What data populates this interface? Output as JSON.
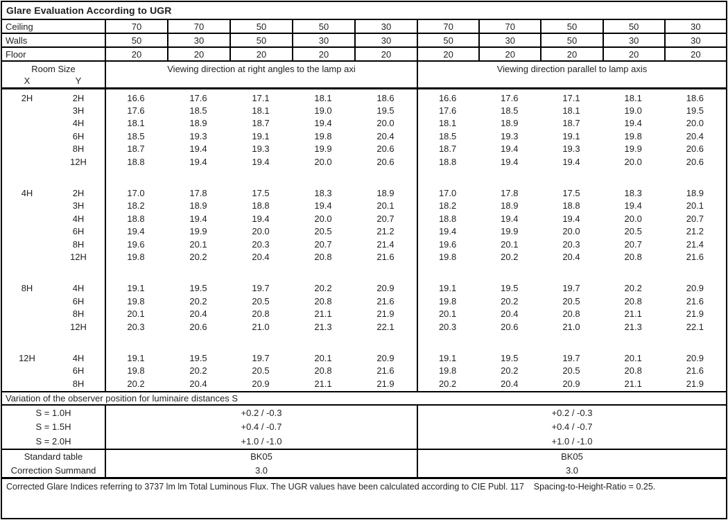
{
  "title": "Glare Evaluation According to UGR",
  "colors": {
    "border": "#000000",
    "text": "#1f1f1f",
    "background": "#ffffff"
  },
  "surface_reflectances": {
    "rows": [
      {
        "label": "Ceiling",
        "values": [
          "70",
          "70",
          "50",
          "50",
          "30",
          "70",
          "70",
          "50",
          "50",
          "30"
        ]
      },
      {
        "label": "Walls",
        "values": [
          "50",
          "30",
          "50",
          "30",
          "30",
          "50",
          "30",
          "50",
          "30",
          "30"
        ]
      },
      {
        "label": "Floor",
        "values": [
          "20",
          "20",
          "20",
          "20",
          "20",
          "20",
          "20",
          "20",
          "20",
          "20"
        ]
      }
    ]
  },
  "header": {
    "room_size": "Room Size",
    "x": "X",
    "y": "Y",
    "left_section": "Viewing direction at right angles to the lamp axi",
    "right_section": "Viewing direction parallel to lamp axis"
  },
  "ugr_table": {
    "blocks": [
      {
        "x": "2H",
        "rows": [
          {
            "y": "2H",
            "right_angle": [
              "16.6",
              "17.6",
              "17.1",
              "18.1",
              "18.6"
            ],
            "parallel": [
              "16.6",
              "17.6",
              "17.1",
              "18.1",
              "18.6"
            ]
          },
          {
            "y": "3H",
            "right_angle": [
              "17.6",
              "18.5",
              "18.1",
              "19.0",
              "19.5"
            ],
            "parallel": [
              "17.6",
              "18.5",
              "18.1",
              "19.0",
              "19.5"
            ]
          },
          {
            "y": "4H",
            "right_angle": [
              "18.1",
              "18.9",
              "18.7",
              "19.4",
              "20.0"
            ],
            "parallel": [
              "18.1",
              "18.9",
              "18.7",
              "19.4",
              "20.0"
            ]
          },
          {
            "y": "6H",
            "right_angle": [
              "18.5",
              "19.3",
              "19.1",
              "19.8",
              "20.4"
            ],
            "parallel": [
              "18.5",
              "19.3",
              "19.1",
              "19.8",
              "20.4"
            ]
          },
          {
            "y": "8H",
            "right_angle": [
              "18.7",
              "19.4",
              "19.3",
              "19.9",
              "20.6"
            ],
            "parallel": [
              "18.7",
              "19.4",
              "19.3",
              "19.9",
              "20.6"
            ]
          },
          {
            "y": "12H",
            "right_angle": [
              "18.8",
              "19.4",
              "19.4",
              "20.0",
              "20.6"
            ],
            "parallel": [
              "18.8",
              "19.4",
              "19.4",
              "20.0",
              "20.6"
            ]
          }
        ]
      },
      {
        "x": "4H",
        "rows": [
          {
            "y": "2H",
            "right_angle": [
              "17.0",
              "17.8",
              "17.5",
              "18.3",
              "18.9"
            ],
            "parallel": [
              "17.0",
              "17.8",
              "17.5",
              "18.3",
              "18.9"
            ]
          },
          {
            "y": "3H",
            "right_angle": [
              "18.2",
              "18.9",
              "18.8",
              "19.4",
              "20.1"
            ],
            "parallel": [
              "18.2",
              "18.9",
              "18.8",
              "19.4",
              "20.1"
            ]
          },
          {
            "y": "4H",
            "right_angle": [
              "18.8",
              "19.4",
              "19.4",
              "20.0",
              "20.7"
            ],
            "parallel": [
              "18.8",
              "19.4",
              "19.4",
              "20.0",
              "20.7"
            ]
          },
          {
            "y": "6H",
            "right_angle": [
              "19.4",
              "19.9",
              "20.0",
              "20.5",
              "21.2"
            ],
            "parallel": [
              "19.4",
              "19.9",
              "20.0",
              "20.5",
              "21.2"
            ]
          },
          {
            "y": "8H",
            "right_angle": [
              "19.6",
              "20.1",
              "20.3",
              "20.7",
              "21.4"
            ],
            "parallel": [
              "19.6",
              "20.1",
              "20.3",
              "20.7",
              "21.4"
            ]
          },
          {
            "y": "12H",
            "right_angle": [
              "19.8",
              "20.2",
              "20.4",
              "20.8",
              "21.6"
            ],
            "parallel": [
              "19.8",
              "20.2",
              "20.4",
              "20.8",
              "21.6"
            ]
          }
        ]
      },
      {
        "x": "8H",
        "rows": [
          {
            "y": "4H",
            "right_angle": [
              "19.1",
              "19.5",
              "19.7",
              "20.2",
              "20.9"
            ],
            "parallel": [
              "19.1",
              "19.5",
              "19.7",
              "20.2",
              "20.9"
            ]
          },
          {
            "y": "6H",
            "right_angle": [
              "19.8",
              "20.2",
              "20.5",
              "20.8",
              "21.6"
            ],
            "parallel": [
              "19.8",
              "20.2",
              "20.5",
              "20.8",
              "21.6"
            ]
          },
          {
            "y": "8H",
            "right_angle": [
              "20.1",
              "20.4",
              "20.8",
              "21.1",
              "21.9"
            ],
            "parallel": [
              "20.1",
              "20.4",
              "20.8",
              "21.1",
              "21.9"
            ]
          },
          {
            "y": "12H",
            "right_angle": [
              "20.3",
              "20.6",
              "21.0",
              "21.3",
              "22.1"
            ],
            "parallel": [
              "20.3",
              "20.6",
              "21.0",
              "21.3",
              "22.1"
            ]
          }
        ]
      },
      {
        "x": "12H",
        "rows": [
          {
            "y": "4H",
            "right_angle": [
              "19.1",
              "19.5",
              "19.7",
              "20.1",
              "20.9"
            ],
            "parallel": [
              "19.1",
              "19.5",
              "19.7",
              "20.1",
              "20.9"
            ]
          },
          {
            "y": "6H",
            "right_angle": [
              "19.8",
              "20.2",
              "20.5",
              "20.8",
              "21.6"
            ],
            "parallel": [
              "19.8",
              "20.2",
              "20.5",
              "20.8",
              "21.6"
            ]
          },
          {
            "y": "8H",
            "right_angle": [
              "20.2",
              "20.4",
              "20.9",
              "21.1",
              "21.9"
            ],
            "parallel": [
              "20.2",
              "20.4",
              "20.9",
              "21.1",
              "21.9"
            ]
          }
        ]
      }
    ]
  },
  "variation": {
    "title": "Variation of the observer position for luminaire distances S",
    "rows": [
      {
        "label": "S = 1.0H",
        "left": "+0.2 / -0.3",
        "right": "+0.2 / -0.3"
      },
      {
        "label": "S = 1.5H",
        "left": "+0.4 / -0.7",
        "right": "+0.4 / -0.7"
      },
      {
        "label": "S = 2.0H",
        "left": "+1.0 / -1.0",
        "right": "+1.0 / -1.0"
      }
    ]
  },
  "summary": {
    "rows": [
      {
        "label": "Standard table",
        "left": "BK05",
        "right": "BK05"
      },
      {
        "label": "Correction Summand",
        "left": "3.0",
        "right": "3.0"
      }
    ]
  },
  "footer": "Corrected Glare Indices referring to 3737 lm lm Total Luminous Flux. The UGR values have been calculated according to CIE Publ. 117    Spacing-to-Height-Ratio = 0.25."
}
